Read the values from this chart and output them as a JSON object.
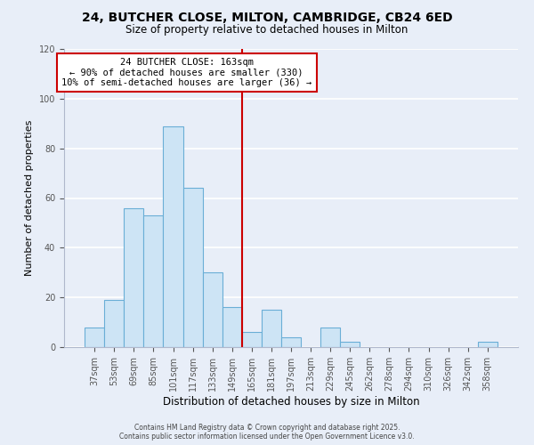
{
  "title": "24, BUTCHER CLOSE, MILTON, CAMBRIDGE, CB24 6ED",
  "subtitle": "Size of property relative to detached houses in Milton",
  "xlabel": "Distribution of detached houses by size in Milton",
  "ylabel": "Number of detached properties",
  "bar_labels": [
    "37sqm",
    "53sqm",
    "69sqm",
    "85sqm",
    "101sqm",
    "117sqm",
    "133sqm",
    "149sqm",
    "165sqm",
    "181sqm",
    "197sqm",
    "213sqm",
    "229sqm",
    "245sqm",
    "262sqm",
    "278sqm",
    "294sqm",
    "310sqm",
    "326sqm",
    "342sqm",
    "358sqm"
  ],
  "bar_heights": [
    8,
    19,
    56,
    53,
    89,
    64,
    30,
    16,
    6,
    15,
    4,
    0,
    8,
    2,
    0,
    0,
    0,
    0,
    0,
    0,
    2
  ],
  "bar_color": "#cde4f5",
  "bar_edge_color": "#6aaed6",
  "bar_width": 1.0,
  "vline_x": 7.5,
  "vline_color": "#cc0000",
  "annotation_title": "24 BUTCHER CLOSE: 163sqm",
  "annotation_line1": "← 90% of detached houses are smaller (330)",
  "annotation_line2": "10% of semi-detached houses are larger (36) →",
  "annotation_box_color": "#ffffff",
  "annotation_box_edge": "#cc0000",
  "ylim": [
    0,
    120
  ],
  "yticks": [
    0,
    20,
    40,
    60,
    80,
    100,
    120
  ],
  "bg_color": "#e8eef8",
  "grid_color": "#ffffff",
  "footer1": "Contains HM Land Registry data © Crown copyright and database right 2025.",
  "footer2": "Contains public sector information licensed under the Open Government Licence v3.0."
}
